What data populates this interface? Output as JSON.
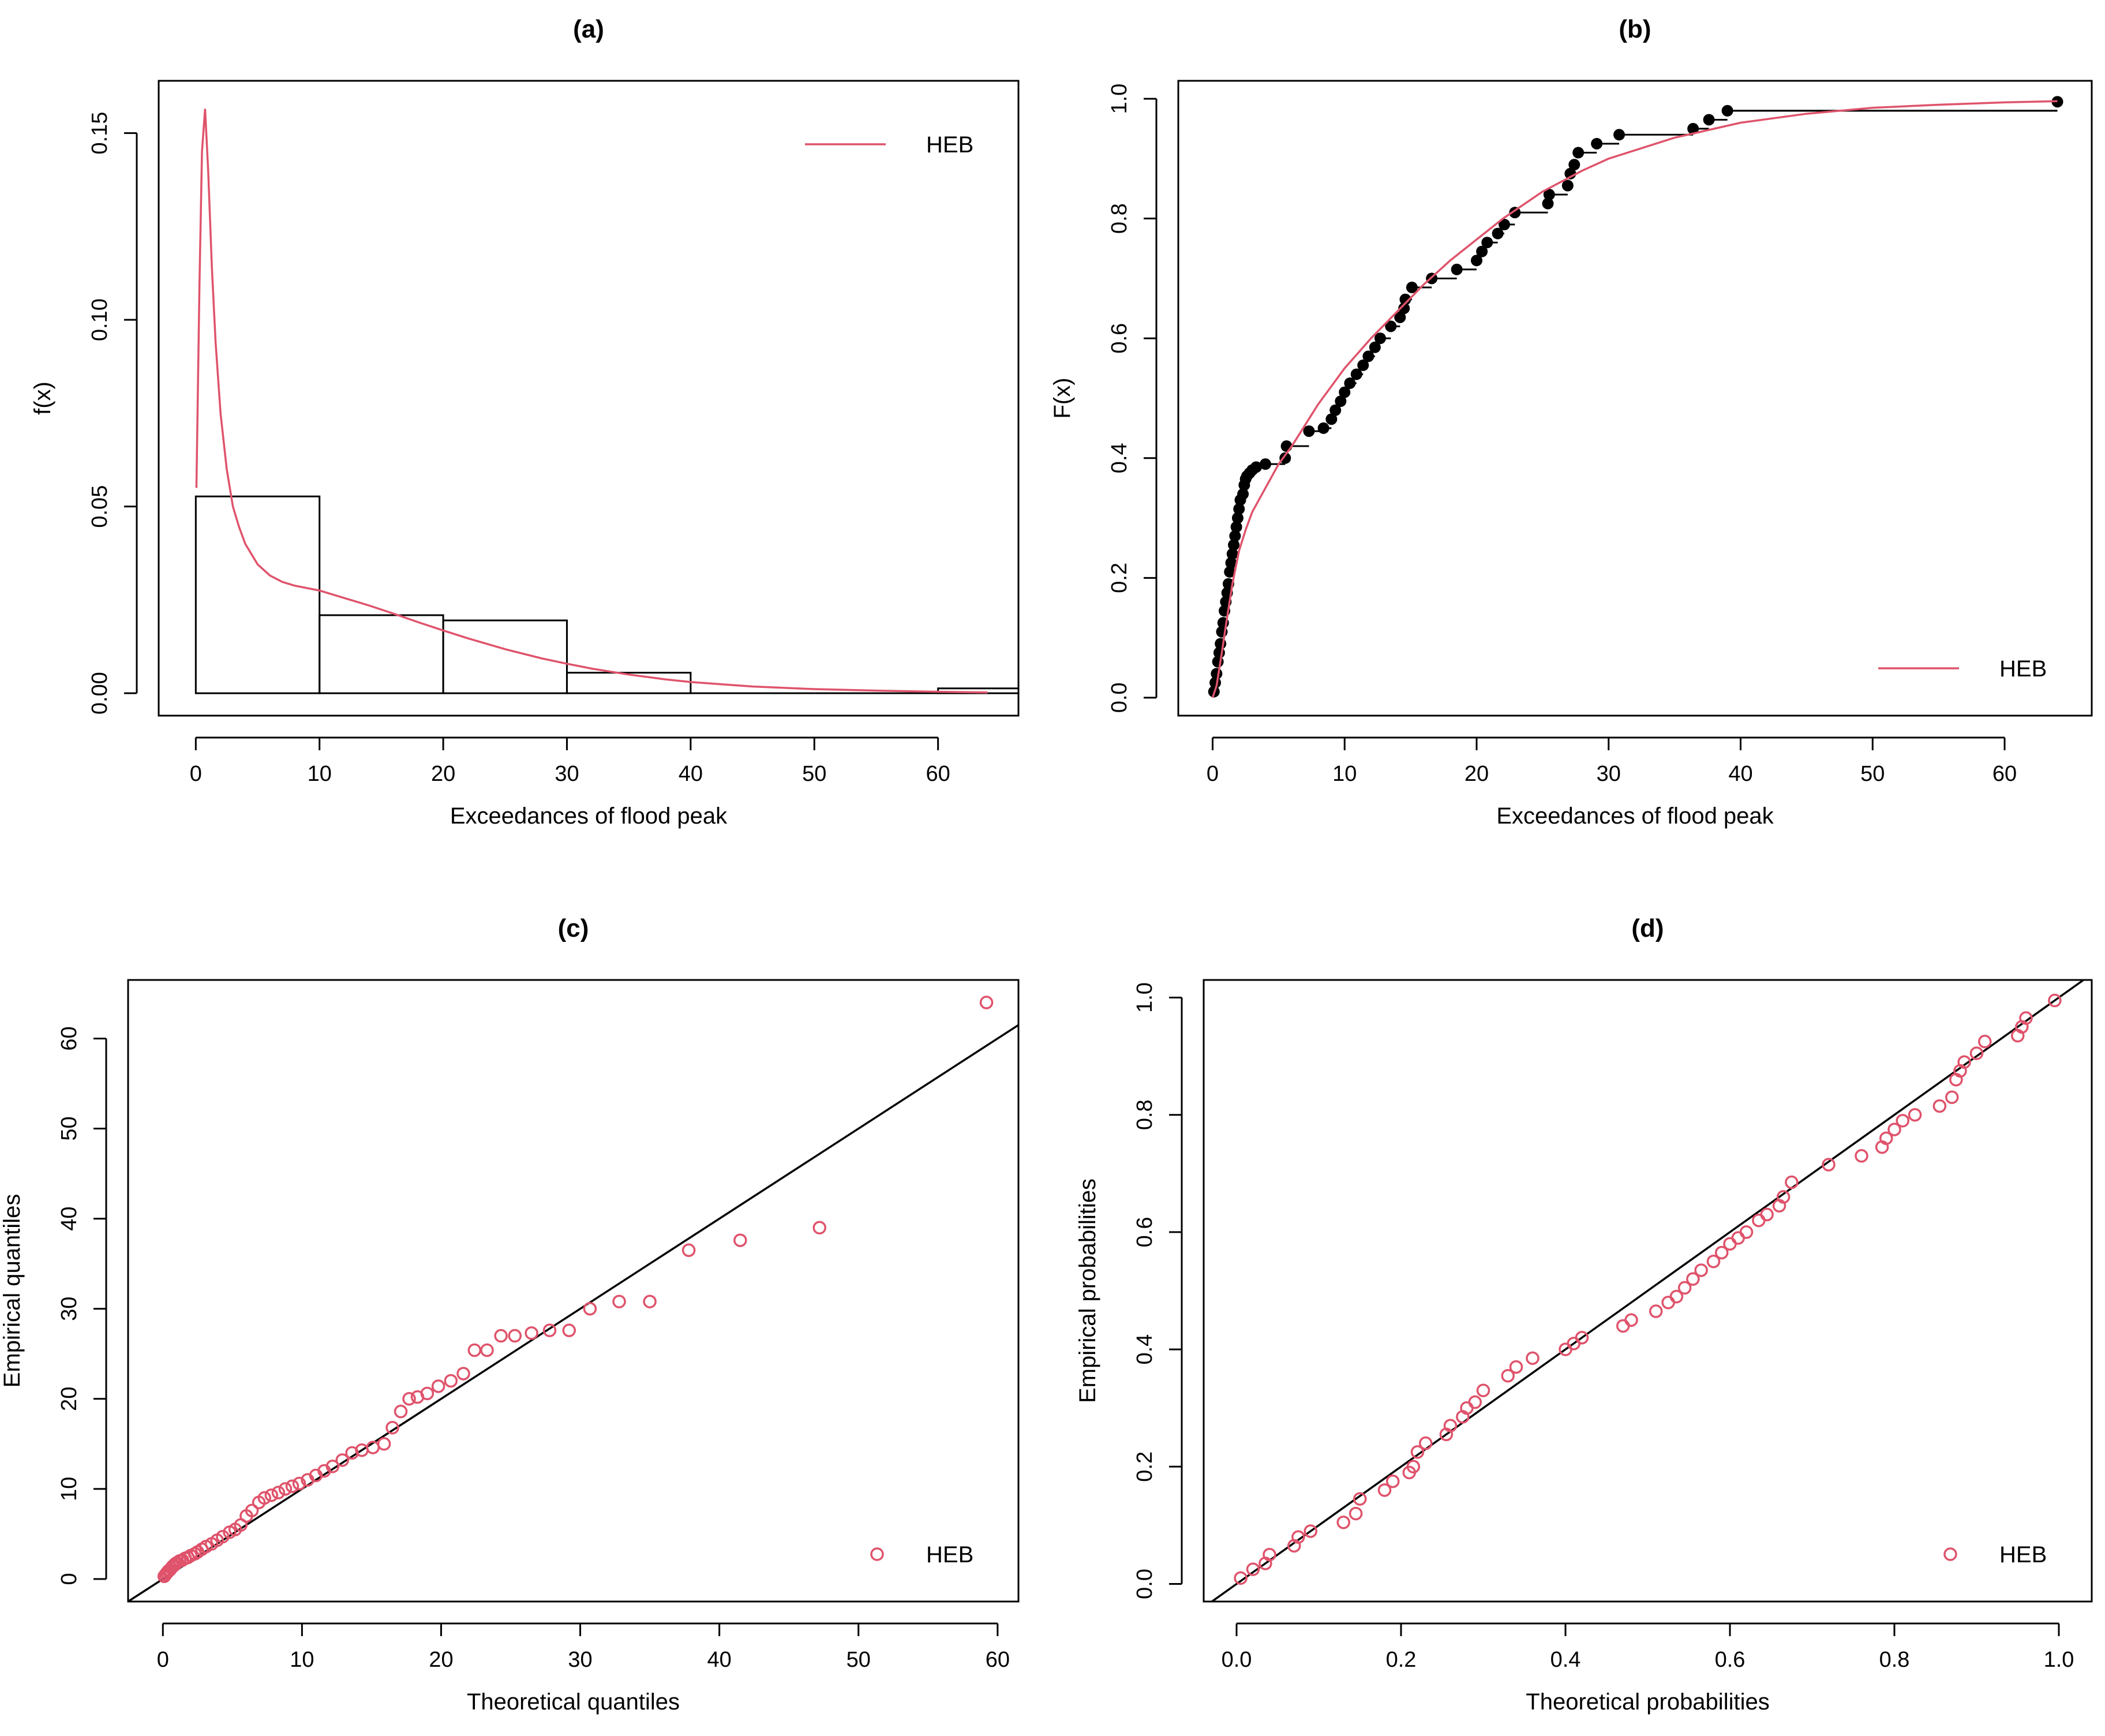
{
  "colors": {
    "heb": "#DF536B",
    "ink": "#000000"
  },
  "chart_data": [
    {
      "id": "a",
      "type": "histogram",
      "title": "(a)",
      "xlabel": "Exceedances of flood peak",
      "ylabel": "f(x)",
      "xlim": [
        -3,
        66.5
      ],
      "ylim": [
        -0.006,
        0.164
      ],
      "xticks": [
        0,
        10,
        20,
        30,
        40,
        50,
        60
      ],
      "xtick_labels": [
        "0",
        "10",
        "20",
        "30",
        "40",
        "50",
        "60"
      ],
      "yticks": [
        0,
        0.05,
        0.1,
        0.15
      ],
      "ytick_labels": [
        "0.00",
        "0.05",
        "0.10",
        "0.15"
      ],
      "bins": [
        {
          "from": 0,
          "to": 10,
          "density": 0.0527
        },
        {
          "from": 10,
          "to": 20,
          "density": 0.0209
        },
        {
          "from": 20,
          "to": 30,
          "density": 0.0195
        },
        {
          "from": 30,
          "to": 40,
          "density": 0.0055
        },
        {
          "from": 40,
          "to": 50,
          "density": 0.0
        },
        {
          "from": 50,
          "to": 60,
          "density": 0.0
        },
        {
          "from": 60,
          "to": 70,
          "density": 0.0013
        }
      ],
      "curve": {
        "name": "HEB",
        "x": [
          0.05,
          0.3,
          0.5,
          0.75,
          1.0,
          1.3,
          1.6,
          2.0,
          2.5,
          3.0,
          3.5,
          4.0,
          5,
          6,
          7,
          8,
          10,
          12,
          14,
          16,
          18,
          20,
          22,
          25,
          28,
          30,
          32,
          35,
          38,
          40,
          45,
          50,
          55,
          60,
          64
        ],
        "y": [
          0.055,
          0.11,
          0.145,
          0.1565,
          0.14,
          0.114,
          0.094,
          0.075,
          0.06,
          0.05,
          0.0445,
          0.04,
          0.0345,
          0.0315,
          0.0298,
          0.0288,
          0.0275,
          0.0255,
          0.0235,
          0.0213,
          0.019,
          0.0168,
          0.0147,
          0.0118,
          0.0093,
          0.0079,
          0.0066,
          0.005,
          0.0037,
          0.003,
          0.0018,
          0.0011,
          0.0007,
          0.0004,
          0.0002
        ]
      },
      "legend": {
        "label": "HEB",
        "position": "top-right",
        "symbol": "line"
      }
    },
    {
      "id": "b",
      "type": "step",
      "title": "(b)",
      "xlabel": "Exceedances of flood peak",
      "ylabel": "F(x)",
      "xlim": [
        -2.6,
        66.6
      ],
      "ylim": [
        -0.03,
        1.03
      ],
      "xticks": [
        0,
        10,
        20,
        30,
        40,
        50,
        60
      ],
      "xtick_labels": [
        "0",
        "10",
        "20",
        "30",
        "40",
        "50",
        "60"
      ],
      "yticks": [
        0,
        0.2,
        0.4,
        0.6,
        0.8,
        1.0
      ],
      "ytick_labels": [
        "0.0",
        "0.2",
        "0.4",
        "0.6",
        "0.8",
        "1.0"
      ],
      "points": {
        "x": [
          0.1,
          0.2,
          0.3,
          0.4,
          0.5,
          0.6,
          0.7,
          0.8,
          0.9,
          1.0,
          1.1,
          1.2,
          1.3,
          1.4,
          1.5,
          1.6,
          1.7,
          1.8,
          1.9,
          2.0,
          2.1,
          2.3,
          2.4,
          2.5,
          2.6,
          2.8,
          3.0,
          3.3,
          4.0,
          5.5,
          5.6,
          7.3,
          8.4,
          9.0,
          9.3,
          9.7,
          10.0,
          10.4,
          10.9,
          11.4,
          11.8,
          12.3,
          12.7,
          13.5,
          14.2,
          14.5,
          14.6,
          15.1,
          16.6,
          18.5,
          20.0,
          20.4,
          20.8,
          21.6,
          22.1,
          22.9,
          25.4,
          25.5,
          26.9,
          27.1,
          27.4,
          27.7,
          29.1,
          30.8,
          36.4,
          37.6,
          39.0,
          64.0
        ],
        "y": [
          0.01,
          0.025,
          0.04,
          0.06,
          0.075,
          0.09,
          0.11,
          0.125,
          0.145,
          0.16,
          0.175,
          0.19,
          0.21,
          0.225,
          0.24,
          0.255,
          0.27,
          0.285,
          0.3,
          0.315,
          0.33,
          0.34,
          0.355,
          0.365,
          0.37,
          0.375,
          0.38,
          0.385,
          0.39,
          0.4,
          0.42,
          0.445,
          0.45,
          0.465,
          0.48,
          0.495,
          0.51,
          0.525,
          0.54,
          0.555,
          0.57,
          0.585,
          0.6,
          0.62,
          0.635,
          0.65,
          0.665,
          0.685,
          0.7,
          0.715,
          0.73,
          0.745,
          0.76,
          0.775,
          0.79,
          0.81,
          0.825,
          0.84,
          0.855,
          0.875,
          0.89,
          0.91,
          0.925,
          0.94,
          0.95,
          0.965,
          0.98,
          0.995
        ]
      },
      "curve": {
        "name": "HEB",
        "x": [
          0,
          0.3,
          0.7,
          1.0,
          1.5,
          2.0,
          2.5,
          3.0,
          4,
          5,
          6,
          8,
          10,
          12,
          14,
          16,
          18,
          20,
          22,
          25,
          28,
          30,
          35,
          40,
          45,
          50,
          55,
          60,
          64
        ],
        "y": [
          0.0,
          0.02,
          0.075,
          0.12,
          0.19,
          0.245,
          0.28,
          0.31,
          0.35,
          0.39,
          0.42,
          0.49,
          0.55,
          0.6,
          0.645,
          0.69,
          0.73,
          0.765,
          0.8,
          0.845,
          0.88,
          0.9,
          0.935,
          0.96,
          0.975,
          0.985,
          0.99,
          0.994,
          0.996
        ]
      },
      "legend": {
        "label": "HEB",
        "position": "bottom-right",
        "symbol": "line"
      }
    },
    {
      "id": "c",
      "type": "scatter",
      "title": "(c)",
      "xlabel": "Theoretical quantiles",
      "ylabel": "Empirical quantiles",
      "xlim": [
        -2.5,
        61.5
      ],
      "ylim": [
        -2.5,
        66.5
      ],
      "xticks": [
        0,
        10,
        20,
        30,
        40,
        50,
        60
      ],
      "xtick_labels": [
        "0",
        "10",
        "20",
        "30",
        "40",
        "50",
        "60"
      ],
      "yticks": [
        0,
        10,
        20,
        30,
        40,
        50,
        60
      ],
      "ytick_labels": [
        "0",
        "10",
        "20",
        "30",
        "40",
        "50",
        "60"
      ],
      "points": {
        "x": [
          0.1,
          0.2,
          0.3,
          0.4,
          0.5,
          0.6,
          0.7,
          0.8,
          0.9,
          1.0,
          1.2,
          1.4,
          1.6,
          1.8,
          2.0,
          2.3,
          2.5,
          2.8,
          3.1,
          3.5,
          3.9,
          4.3,
          4.8,
          5.2,
          5.6,
          6.0,
          6.4,
          6.9,
          7.3,
          7.8,
          8.3,
          8.8,
          9.3,
          9.8,
          10.4,
          11.0,
          11.6,
          12.2,
          12.9,
          13.6,
          14.3,
          15.1,
          15.9,
          16.5,
          17.1,
          17.7,
          18.3,
          19.0,
          19.8,
          20.7,
          21.6,
          22.4,
          23.3,
          24.3,
          25.3,
          26.5,
          27.8,
          29.2,
          30.7,
          32.8,
          35.0,
          37.8,
          41.5,
          47.2,
          59.2
        ],
        "y": [
          0.3,
          0.5,
          0.7,
          0.9,
          1.0,
          1.2,
          1.4,
          1.5,
          1.7,
          1.8,
          2.0,
          2.1,
          2.3,
          2.4,
          2.6,
          2.8,
          3.0,
          3.3,
          3.6,
          3.9,
          4.3,
          4.7,
          5.2,
          5.5,
          6.0,
          7.0,
          7.6,
          8.5,
          9.0,
          9.3,
          9.6,
          10.0,
          10.3,
          10.6,
          11.0,
          11.5,
          12.0,
          12.5,
          13.2,
          14.0,
          14.3,
          14.6,
          15.0,
          16.8,
          18.6,
          20.0,
          20.2,
          20.6,
          21.4,
          22.0,
          22.8,
          25.4,
          25.4,
          27.0,
          27.0,
          27.3,
          27.6,
          27.6,
          30.0,
          30.8,
          30.8,
          36.5,
          37.6,
          39.0,
          64.0
        ]
      },
      "reference_line": {
        "slope": 1,
        "intercept": 0
      },
      "legend": {
        "label": "HEB",
        "position": "bottom-right",
        "symbol": "circle"
      }
    },
    {
      "id": "d",
      "type": "scatter",
      "title": "(d)",
      "xlabel": "Theoretical probabilities",
      "ylabel": "Empirical probabilities",
      "xlim": [
        -0.04,
        1.04
      ],
      "ylim": [
        -0.03,
        1.03
      ],
      "xticks": [
        0,
        0.2,
        0.4,
        0.6,
        0.8,
        1.0
      ],
      "xtick_labels": [
        "0.0",
        "0.2",
        "0.4",
        "0.6",
        "0.8",
        "1.0"
      ],
      "yticks": [
        0,
        0.2,
        0.4,
        0.6,
        0.8,
        1.0
      ],
      "ytick_labels": [
        "0.0",
        "0.2",
        "0.4",
        "0.6",
        "0.8",
        "1.0"
      ],
      "points": {
        "x": [
          0.005,
          0.02,
          0.035,
          0.04,
          0.07,
          0.075,
          0.09,
          0.13,
          0.145,
          0.15,
          0.18,
          0.19,
          0.21,
          0.215,
          0.22,
          0.23,
          0.255,
          0.26,
          0.275,
          0.28,
          0.29,
          0.3,
          0.33,
          0.34,
          0.36,
          0.4,
          0.41,
          0.42,
          0.47,
          0.48,
          0.51,
          0.525,
          0.535,
          0.545,
          0.555,
          0.565,
          0.58,
          0.59,
          0.6,
          0.61,
          0.62,
          0.635,
          0.645,
          0.66,
          0.665,
          0.675,
          0.72,
          0.76,
          0.785,
          0.79,
          0.8,
          0.81,
          0.825,
          0.855,
          0.87,
          0.875,
          0.88,
          0.885,
          0.9,
          0.91,
          0.95,
          0.955,
          0.96,
          0.995
        ],
        "y": [
          0.01,
          0.025,
          0.035,
          0.05,
          0.065,
          0.08,
          0.09,
          0.105,
          0.12,
          0.145,
          0.16,
          0.175,
          0.19,
          0.2,
          0.225,
          0.24,
          0.255,
          0.27,
          0.285,
          0.3,
          0.31,
          0.33,
          0.355,
          0.37,
          0.385,
          0.4,
          0.41,
          0.42,
          0.44,
          0.45,
          0.465,
          0.48,
          0.49,
          0.505,
          0.52,
          0.535,
          0.55,
          0.565,
          0.58,
          0.59,
          0.6,
          0.62,
          0.63,
          0.645,
          0.66,
          0.685,
          0.715,
          0.73,
          0.745,
          0.76,
          0.775,
          0.79,
          0.8,
          0.815,
          0.83,
          0.86,
          0.875,
          0.89,
          0.905,
          0.925,
          0.935,
          0.95,
          0.965,
          0.995
        ]
      },
      "reference_line": {
        "slope": 1,
        "intercept": 0
      },
      "legend": {
        "label": "HEB",
        "position": "bottom-right",
        "symbol": "circle"
      }
    }
  ]
}
